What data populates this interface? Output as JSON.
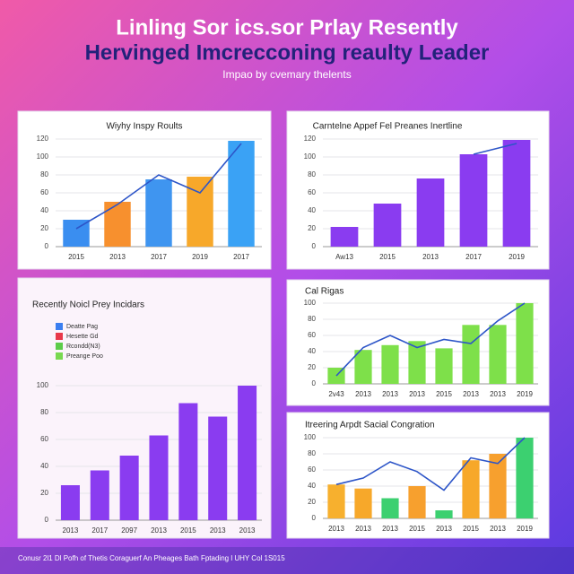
{
  "header": {
    "title_line1": "Linling Sor ics.sor Prlay Resently",
    "title_line2": "Hervinged Imcrecconing reaulty Leader",
    "subtitle": "Impao by cvemary thelents"
  },
  "footer": "Conusr 2l1 Dl Pofh of Thetis Coraguerf An Pheages Bath Fptading l UHY Col 1S015",
  "chart_data": [
    {
      "type": "bar",
      "title": "Wiyhy Inspy Roults",
      "categories": [
        "2015",
        "2013",
        "2017",
        "2019",
        "2017"
      ],
      "series": [
        {
          "type": "bar",
          "colors": [
            "#3a8ef0",
            "#f7902e",
            "#3f95f0",
            "#f7a82a",
            "#3aa2f5"
          ],
          "values": [
            30,
            50,
            75,
            78,
            118
          ]
        },
        {
          "type": "line",
          "color": "#2d55c8",
          "values": [
            20,
            47,
            80,
            60,
            115
          ]
        }
      ],
      "ylim": [
        0,
        120
      ],
      "yticks": [
        0,
        20,
        40,
        60,
        80,
        100,
        120
      ],
      "grid": true
    },
    {
      "type": "bar",
      "title": "Carntelne Appef Fel Preanes Inertline",
      "categories": [
        "Aw13",
        "2015",
        "2013",
        "2017",
        "2019"
      ],
      "series": [
        {
          "type": "bar",
          "colors": [
            "#8a3cf0",
            "#8a3cf0",
            "#8a3cf0",
            "#8a3cf0",
            "#8a3cf0"
          ],
          "values": [
            22,
            48,
            76,
            103,
            119
          ]
        },
        {
          "type": "line",
          "color": "#2d55c8",
          "values": [
            null,
            null,
            null,
            103,
            115
          ]
        }
      ],
      "ylim": [
        0,
        120
      ],
      "yticks": [
        0,
        20,
        40,
        60,
        80,
        100,
        120
      ],
      "grid": true
    },
    {
      "type": "bar",
      "title": "Recently Noicl Prey Incidars",
      "legend": [
        {
          "name": "Deatte Pag",
          "color": "#3a7ef0"
        },
        {
          "name": "Hesette Gd",
          "color": "#e8384a"
        },
        {
          "name": "Rcondd(N3)",
          "color": "#5ccc4a"
        },
        {
          "name": "Preange Poo",
          "color": "#78d850"
        }
      ],
      "categories": [
        "2013",
        "2017",
        "2097",
        "2013",
        "2015",
        "2013",
        "2013"
      ],
      "series": [
        {
          "type": "bar",
          "colors": [
            "#8a3cf0",
            "#8a3cf0",
            "#8a3cf0",
            "#8a3cf0",
            "#8a3cf0",
            "#8a3cf0",
            "#8a3cf0"
          ],
          "values": [
            26,
            37,
            48,
            63,
            87,
            77,
            100
          ]
        }
      ],
      "ylim": [
        0,
        100
      ],
      "yticks": [
        0,
        20,
        40,
        60,
        80,
        100
      ],
      "grid": true
    },
    {
      "type": "bar",
      "title": "Cal Rigas",
      "categories": [
        "2v43",
        "2013",
        "2013",
        "2013",
        "2015",
        "2013",
        "2013",
        "2019"
      ],
      "series": [
        {
          "type": "bar",
          "colors": [
            "#7ee04a",
            "#7ee04a",
            "#7ee04a",
            "#7ee04a",
            "#7ee04a",
            "#7ee04a",
            "#7ee04a",
            "#7ee04a"
          ],
          "values": [
            20,
            42,
            48,
            53,
            44,
            73,
            73,
            100
          ]
        },
        {
          "type": "line",
          "color": "#2d55c8",
          "values": [
            10,
            45,
            60,
            45,
            55,
            50,
            78,
            100
          ]
        }
      ],
      "ylim": [
        0,
        100
      ],
      "yticks": [
        0,
        20,
        40,
        60,
        80,
        100
      ],
      "grid": true
    },
    {
      "type": "bar",
      "title": "Itreering Arpdt Sacial Congration",
      "categories": [
        "2013",
        "2013",
        "2013",
        "2015",
        "2013",
        "2015",
        "2013",
        "2019"
      ],
      "series": [
        {
          "type": "bar",
          "colors": [
            "#f7b02e",
            "#f7a82a",
            "#3cd070",
            "#f7a02e",
            "#3cd070",
            "#f7a82a",
            "#f7a02e",
            "#3cd070"
          ],
          "values": [
            42,
            37,
            25,
            40,
            10,
            72,
            80,
            100
          ]
        },
        {
          "type": "line",
          "color": "#2d55c8",
          "values": [
            42,
            50,
            70,
            58,
            35,
            75,
            68,
            100
          ]
        }
      ],
      "ylim": [
        0,
        100
      ],
      "yticks": [
        0,
        20,
        40,
        60,
        80,
        100
      ],
      "grid": true
    }
  ]
}
